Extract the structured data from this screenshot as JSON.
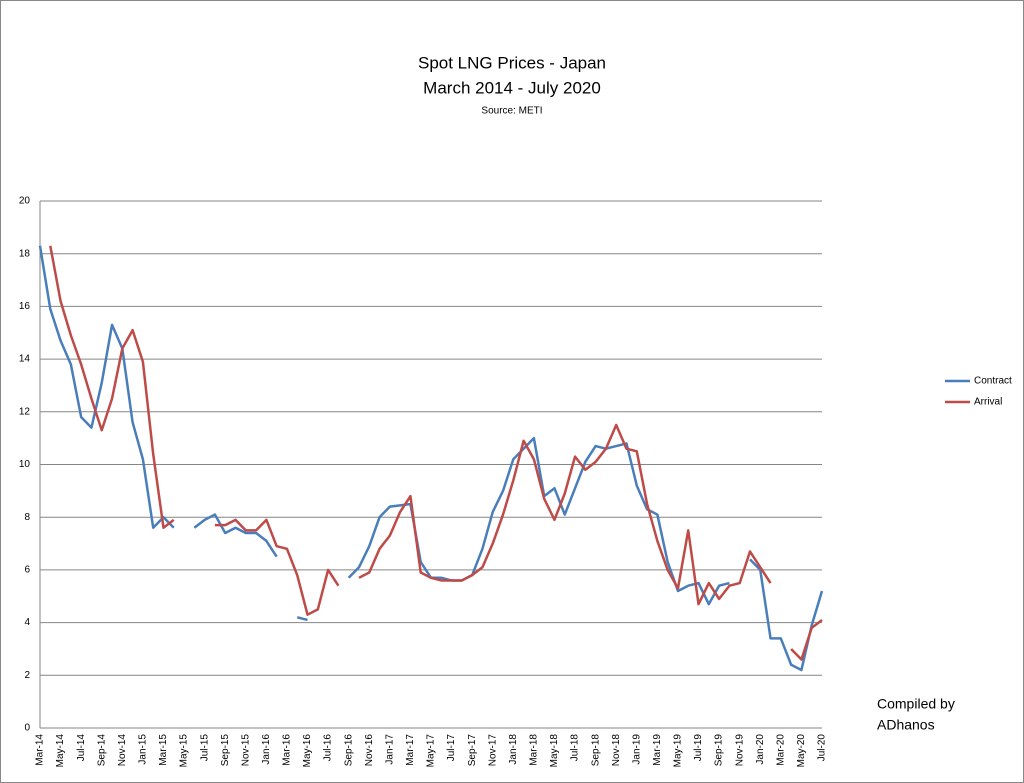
{
  "chart_data": {
    "type": "line",
    "title": "Spot LNG Prices - Japan",
    "subtitle": "March 2014 - July 2020",
    "source": "Source: METI",
    "annotations": [
      "Compiled by",
      "ADhanos"
    ],
    "categories": [
      "Mar-14",
      null,
      "May-14",
      null,
      "Jul-14",
      null,
      "Sep-14",
      null,
      "Nov-14",
      null,
      "Jan-15",
      null,
      "Mar-15",
      null,
      "May-15",
      null,
      "Jul-15",
      null,
      "Sep-15",
      null,
      "Nov-15",
      null,
      "Jan-16",
      null,
      "Mar-16",
      null,
      "May-16",
      null,
      "Jul-16",
      null,
      "Sep-16",
      null,
      "Nov-16",
      null,
      "Jan-17",
      null,
      "Mar-17",
      null,
      "May-17",
      null,
      "Jul-17",
      null,
      "Sep-17",
      null,
      "Nov-17",
      null,
      "Jan-18",
      null,
      "Mar-18",
      null,
      "May-18",
      null,
      "Jul-18",
      null,
      "Sep-18",
      null,
      "Nov-18",
      null,
      "Jan-19",
      null,
      "Mar-19",
      null,
      "May-19",
      null,
      "Jul-19",
      null,
      "Sep-19",
      null,
      "Nov-19",
      null,
      "Jan-20",
      null,
      "Mar-20",
      null,
      "May-20",
      null,
      "Jul-20"
    ],
    "series": [
      {
        "name": "Contract",
        "color": "#4a7ebb",
        "values": [
          18.3,
          15.9,
          14.7,
          13.8,
          11.8,
          11.4,
          13.1,
          15.3,
          14.4,
          11.6,
          10.2,
          7.6,
          8.0,
          7.6,
          null,
          7.6,
          7.9,
          8.1,
          7.4,
          7.6,
          7.4,
          7.4,
          7.1,
          6.5,
          null,
          4.2,
          4.1,
          null,
          null,
          null,
          5.7,
          6.1,
          6.9,
          8.0,
          8.4,
          8.45,
          8.5,
          6.3,
          5.7,
          5.7,
          5.6,
          5.6,
          5.8,
          6.8,
          8.2,
          9.0,
          10.2,
          10.6,
          11.0,
          8.8,
          9.1,
          8.1,
          9.1,
          10.1,
          10.7,
          10.6,
          10.7,
          10.8,
          9.2,
          8.3,
          8.1,
          6.3,
          5.2,
          5.4,
          5.5,
          4.7,
          5.4,
          5.5,
          null,
          6.4,
          6.0,
          3.4,
          3.4,
          2.4,
          2.2,
          3.9,
          5.2
        ]
      },
      {
        "name": "Arrival",
        "color": "#be4b48",
        "values": [
          null,
          18.3,
          16.2,
          14.9,
          13.8,
          12.5,
          11.3,
          12.5,
          14.4,
          15.1,
          13.9,
          10.4,
          7.6,
          7.9,
          null,
          null,
          null,
          7.7,
          7.7,
          7.9,
          7.5,
          7.5,
          7.9,
          6.9,
          6.8,
          5.8,
          4.3,
          4.5,
          6.0,
          5.4,
          null,
          5.7,
          5.9,
          6.8,
          7.3,
          8.2,
          8.8,
          5.9,
          5.7,
          5.6,
          5.6,
          5.6,
          5.8,
          6.1,
          7.0,
          8.1,
          9.4,
          10.9,
          10.2,
          8.7,
          7.9,
          8.9,
          10.3,
          9.8,
          10.1,
          10.6,
          11.5,
          10.6,
          10.5,
          8.5,
          7.1,
          6.0,
          5.3,
          7.5,
          4.7,
          5.5,
          4.9,
          5.4,
          5.5,
          6.7,
          6.1,
          5.5,
          null,
          3.0,
          2.6,
          3.8,
          4.1
        ]
      }
    ],
    "ylim": [
      0,
      20
    ],
    "yticks": [
      0,
      2,
      4,
      6,
      8,
      10,
      12,
      14,
      16,
      18,
      20
    ],
    "grid": true,
    "legend": "right"
  }
}
